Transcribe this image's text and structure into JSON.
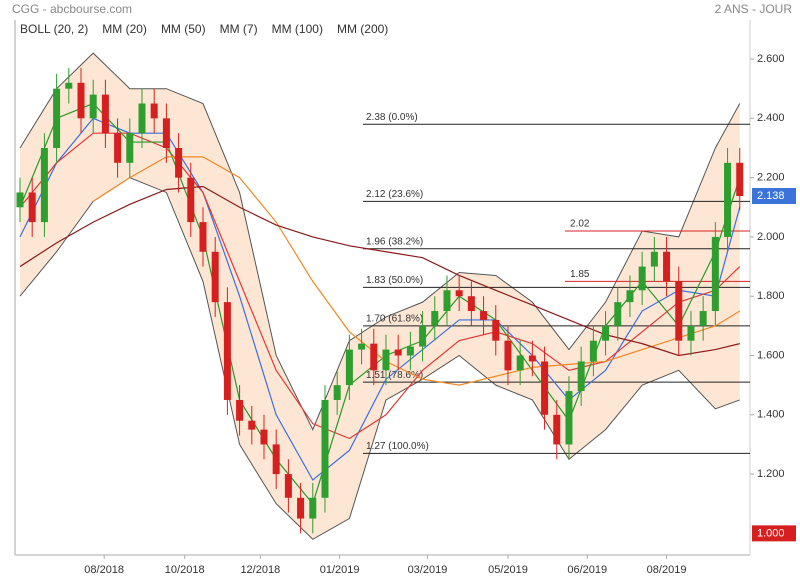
{
  "chart_data": {
    "type": "candlestick",
    "source": "CGG - abcbourse.com",
    "period": "2 ANS - JOUR",
    "up_color": "#2e9e2e",
    "down_color": "#d62020",
    "x": [
      0,
      1,
      2,
      3,
      4,
      5,
      6,
      7,
      8,
      9,
      10,
      11,
      12,
      13,
      14,
      15,
      16,
      17,
      18,
      19,
      20,
      21,
      22,
      23,
      24,
      25,
      26,
      27,
      28,
      29,
      30,
      31,
      32,
      33,
      34,
      35,
      36,
      37,
      38,
      39,
      40,
      41,
      42,
      43,
      44,
      45,
      46,
      47,
      48,
      49,
      50,
      51,
      52,
      53,
      54,
      55,
      56,
      57,
      58,
      59
    ],
    "open": [
      2.1,
      2.15,
      2.05,
      2.3,
      2.5,
      2.52,
      2.4,
      2.48,
      2.35,
      2.25,
      2.35,
      2.45,
      2.4,
      2.3,
      2.2,
      2.05,
      1.95,
      1.78,
      1.45,
      1.38,
      1.35,
      1.3,
      1.2,
      1.12,
      1.05,
      1.12,
      1.45,
      1.5,
      1.62,
      1.64,
      1.55,
      1.62,
      1.6,
      1.63,
      1.7,
      1.75,
      1.82,
      1.8,
      1.75,
      1.72,
      1.65,
      1.55,
      1.6,
      1.58,
      1.4,
      1.3,
      1.48,
      1.58,
      1.65,
      1.7,
      1.78,
      1.82,
      1.9,
      1.95,
      1.85,
      1.65,
      1.7,
      1.75,
      2.0,
      2.25
    ],
    "high": [
      2.2,
      2.2,
      2.35,
      2.55,
      2.57,
      2.57,
      2.53,
      2.53,
      2.4,
      2.4,
      2.5,
      2.5,
      2.45,
      2.35,
      2.25,
      2.1,
      2.0,
      1.83,
      1.5,
      1.43,
      1.4,
      1.35,
      1.25,
      1.17,
      1.17,
      1.5,
      1.55,
      1.67,
      1.69,
      1.69,
      1.67,
      1.67,
      1.68,
      1.75,
      1.8,
      1.87,
      1.87,
      1.85,
      1.8,
      1.77,
      1.7,
      1.65,
      1.65,
      1.63,
      1.45,
      1.53,
      1.63,
      1.7,
      1.75,
      1.83,
      1.87,
      1.95,
      2.0,
      2.0,
      1.9,
      1.75,
      1.8,
      2.05,
      2.3,
      2.3
    ],
    "low": [
      2.05,
      2.0,
      2.0,
      2.25,
      2.45,
      2.35,
      2.35,
      2.3,
      2.2,
      2.2,
      2.3,
      2.35,
      2.25,
      2.15,
      2.0,
      1.9,
      1.73,
      1.4,
      1.33,
      1.3,
      1.25,
      1.15,
      1.07,
      1.0,
      1.0,
      1.07,
      1.4,
      1.45,
      1.57,
      1.5,
      1.5,
      1.55,
      1.55,
      1.58,
      1.65,
      1.7,
      1.75,
      1.7,
      1.67,
      1.6,
      1.5,
      1.5,
      1.53,
      1.35,
      1.25,
      1.25,
      1.43,
      1.53,
      1.6,
      1.65,
      1.73,
      1.77,
      1.85,
      1.8,
      1.6,
      1.6,
      1.65,
      1.7,
      1.95,
      2.09
    ],
    "close": [
      2.15,
      2.05,
      2.3,
      2.5,
      2.52,
      2.4,
      2.48,
      2.35,
      2.25,
      2.35,
      2.45,
      2.4,
      2.3,
      2.2,
      2.05,
      1.95,
      1.78,
      1.45,
      1.38,
      1.35,
      1.3,
      1.2,
      1.12,
      1.05,
      1.12,
      1.45,
      1.5,
      1.62,
      1.64,
      1.55,
      1.62,
      1.6,
      1.63,
      1.7,
      1.75,
      1.82,
      1.8,
      1.75,
      1.72,
      1.65,
      1.55,
      1.6,
      1.58,
      1.4,
      1.3,
      1.48,
      1.58,
      1.65,
      1.7,
      1.78,
      1.82,
      1.9,
      1.95,
      1.85,
      1.65,
      1.7,
      1.75,
      2.0,
      2.25,
      2.138
    ],
    "line_x": [
      0,
      3,
      6,
      9,
      12,
      15,
      18,
      21,
      24,
      27,
      30,
      33,
      36,
      39,
      42,
      45,
      48,
      51,
      54,
      57,
      59
    ],
    "bollinger": {
      "name": "BOLL (20, 2)",
      "color": "#555555",
      "fill": "#fde6d4",
      "upper": [
        2.3,
        2.5,
        2.62,
        2.5,
        2.5,
        2.45,
        2.15,
        1.6,
        1.35,
        1.65,
        1.73,
        1.78,
        1.88,
        1.87,
        1.78,
        1.62,
        1.78,
        2.02,
        2.0,
        2.3,
        2.45
      ],
      "lower": [
        1.8,
        1.95,
        2.12,
        2.2,
        2.15,
        1.85,
        1.3,
        1.1,
        0.98,
        1.05,
        1.45,
        1.52,
        1.6,
        1.5,
        1.45,
        1.25,
        1.35,
        1.5,
        1.55,
        1.42,
        1.45
      ]
    },
    "lines": [
      {
        "name": "MM (20)",
        "color": "#3a6fe0",
        "values": [
          2.0,
          2.25,
          2.4,
          2.35,
          2.35,
          2.15,
          1.8,
          1.4,
          1.18,
          1.28,
          1.52,
          1.62,
          1.72,
          1.72,
          1.6,
          1.45,
          1.55,
          1.75,
          1.82,
          1.8,
          2.1
        ]
      },
      {
        "name": "MM (50)",
        "color": "#e03a3a",
        "values": [
          2.1,
          2.25,
          2.35,
          2.35,
          2.3,
          2.15,
          1.85,
          1.55,
          1.37,
          1.32,
          1.4,
          1.55,
          1.65,
          1.68,
          1.64,
          1.55,
          1.58,
          1.68,
          1.78,
          1.82,
          1.9
        ]
      },
      {
        "name": "MM (7)",
        "color": "#2a9a2a",
        "values": [
          2.1,
          2.4,
          2.45,
          2.32,
          2.32,
          2.0,
          1.45,
          1.25,
          1.1,
          1.5,
          1.6,
          1.65,
          1.8,
          1.72,
          1.55,
          1.38,
          1.7,
          1.85,
          1.7,
          1.95,
          2.2
        ]
      },
      {
        "name": "MM (100)",
        "color": "#f08a24",
        "values": [
          null,
          null,
          2.12,
          2.2,
          2.27,
          2.27,
          2.2,
          2.05,
          1.85,
          1.68,
          1.58,
          1.52,
          1.5,
          1.53,
          1.56,
          1.57,
          1.58,
          1.62,
          1.66,
          1.7,
          1.75
        ]
      },
      {
        "name": "MM (200)",
        "color": "#8b1a1a",
        "values": [
          1.9,
          1.98,
          2.05,
          2.11,
          2.16,
          2.17,
          2.1,
          2.04,
          2.0,
          1.97,
          1.95,
          1.93,
          1.87,
          1.82,
          1.77,
          1.72,
          1.67,
          1.64,
          1.6,
          1.62,
          1.64
        ]
      }
    ],
    "fibonacci": [
      {
        "value": 2.38,
        "label": "2.38  (0.0%)"
      },
      {
        "value": 2.12,
        "label": "2.12  (23.6%)"
      },
      {
        "value": 1.96,
        "label": "1.96  (38.2%)"
      },
      {
        "value": 1.83,
        "label": "1.83  (50.0%)"
      },
      {
        "value": 1.7,
        "label": "1.70  (61.8%)"
      },
      {
        "value": 1.51,
        "label": "1.51  (78.6%)"
      },
      {
        "value": 1.27,
        "label": "1.27  (100.0%)"
      }
    ],
    "resistances": [
      2.02,
      1.85
    ],
    "last_price": 2.138,
    "low_marker": {
      "value": 1,
      "label": "1.000"
    },
    "xlim": [
      -0.41,
      59.84
    ],
    "ylim": [
      0.927,
      2.725
    ],
    "xticks": [
      {
        "value": 6.9,
        "label": "08/2018"
      },
      {
        "value": 13.5,
        "label": "10/2018"
      },
      {
        "value": 19.7,
        "label": "12/2018"
      },
      {
        "value": 26.2,
        "label": "01/2019"
      },
      {
        "value": 33.4,
        "label": "03/2019"
      },
      {
        "value": 40.0,
        "label": "05/2019"
      },
      {
        "value": 46.5,
        "label": "06/2019"
      },
      {
        "value": 53.0,
        "label": "08/2019"
      }
    ],
    "yticks": [
      {
        "value": 1.2,
        "label": "1.200"
      },
      {
        "value": 1.4,
        "label": "1.400"
      },
      {
        "value": 1.6,
        "label": "1.600"
      },
      {
        "value": 1.8,
        "label": "1.800"
      },
      {
        "value": 2.0,
        "label": "2.000"
      },
      {
        "value": 2.2,
        "label": "2.200"
      },
      {
        "value": 2.4,
        "label": "2.400"
      },
      {
        "value": 2.6,
        "label": "2.600"
      }
    ]
  }
}
